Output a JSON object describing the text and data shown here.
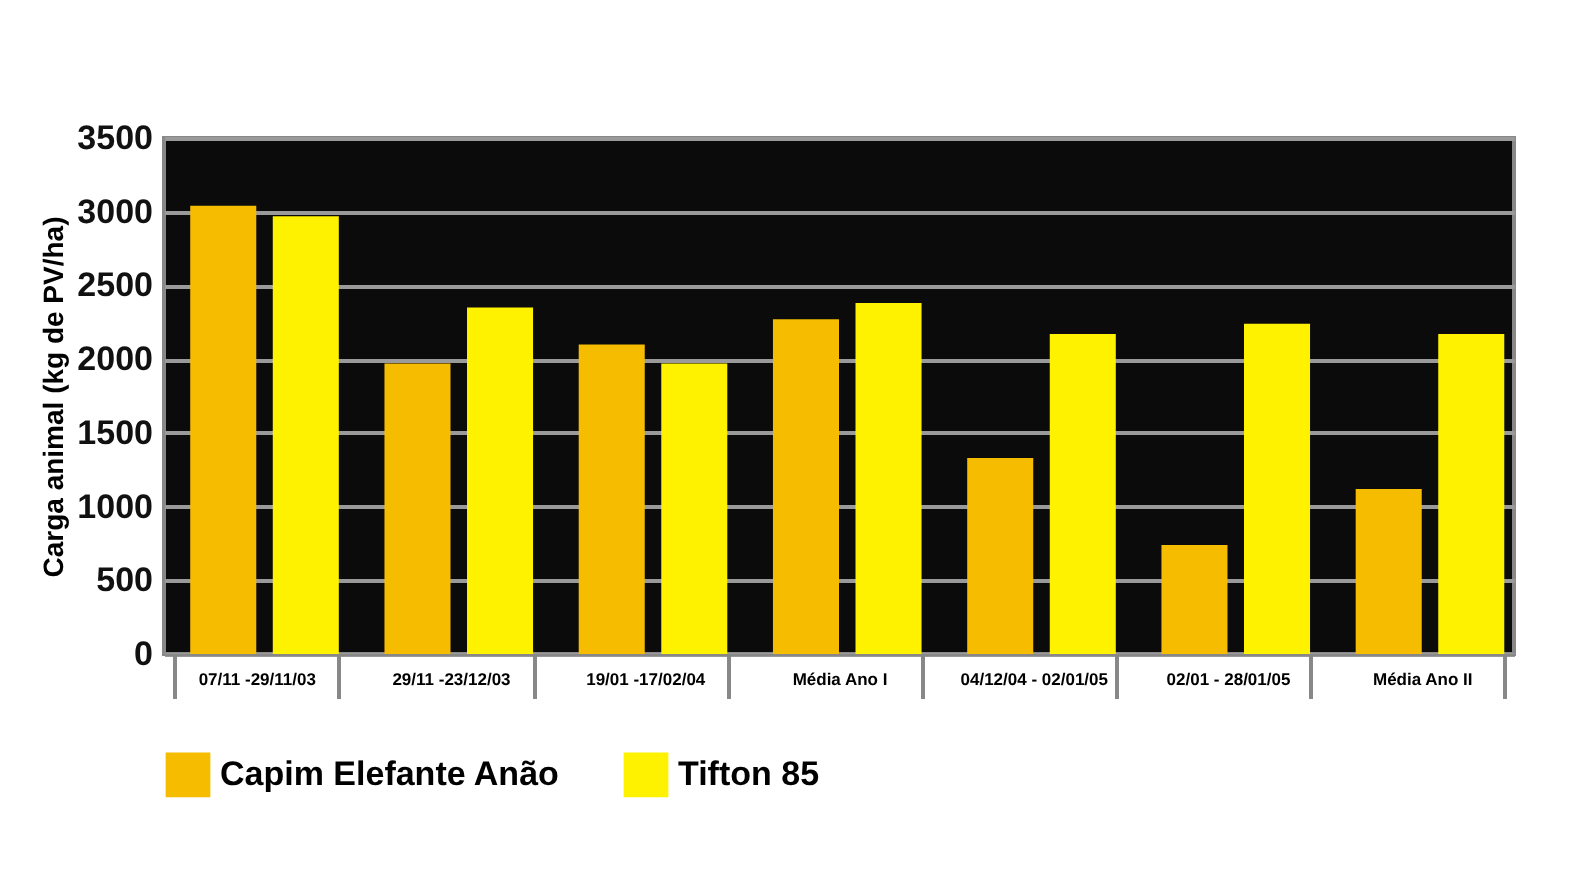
{
  "chart_data": {
    "type": "bar",
    "ylabel": "Carga animal (kg de PV/ha)",
    "categories": [
      "07/11 -29/11/03",
      "29/11 -23/12/03",
      "19/01 -17/02/04",
      "Média Ano I",
      "04/12/04 - 02/01/05",
      "02/01 - 28/01/05",
      "Média Ano II"
    ],
    "series": [
      {
        "name": "Capim Elefante Anão",
        "color": "#f5bc00",
        "values": [
          3040,
          1970,
          2100,
          2270,
          1330,
          740,
          1120
        ]
      },
      {
        "name": "Tifton 85",
        "color": "#fff200",
        "values": [
          2970,
          2350,
          1970,
          2380,
          2170,
          2240,
          2170
        ]
      }
    ],
    "ylim": [
      0,
      3500
    ],
    "yticks": [
      0,
      500,
      1000,
      1500,
      2000,
      2500,
      3000,
      3500
    ],
    "grid": "y",
    "legend": "bottom"
  }
}
